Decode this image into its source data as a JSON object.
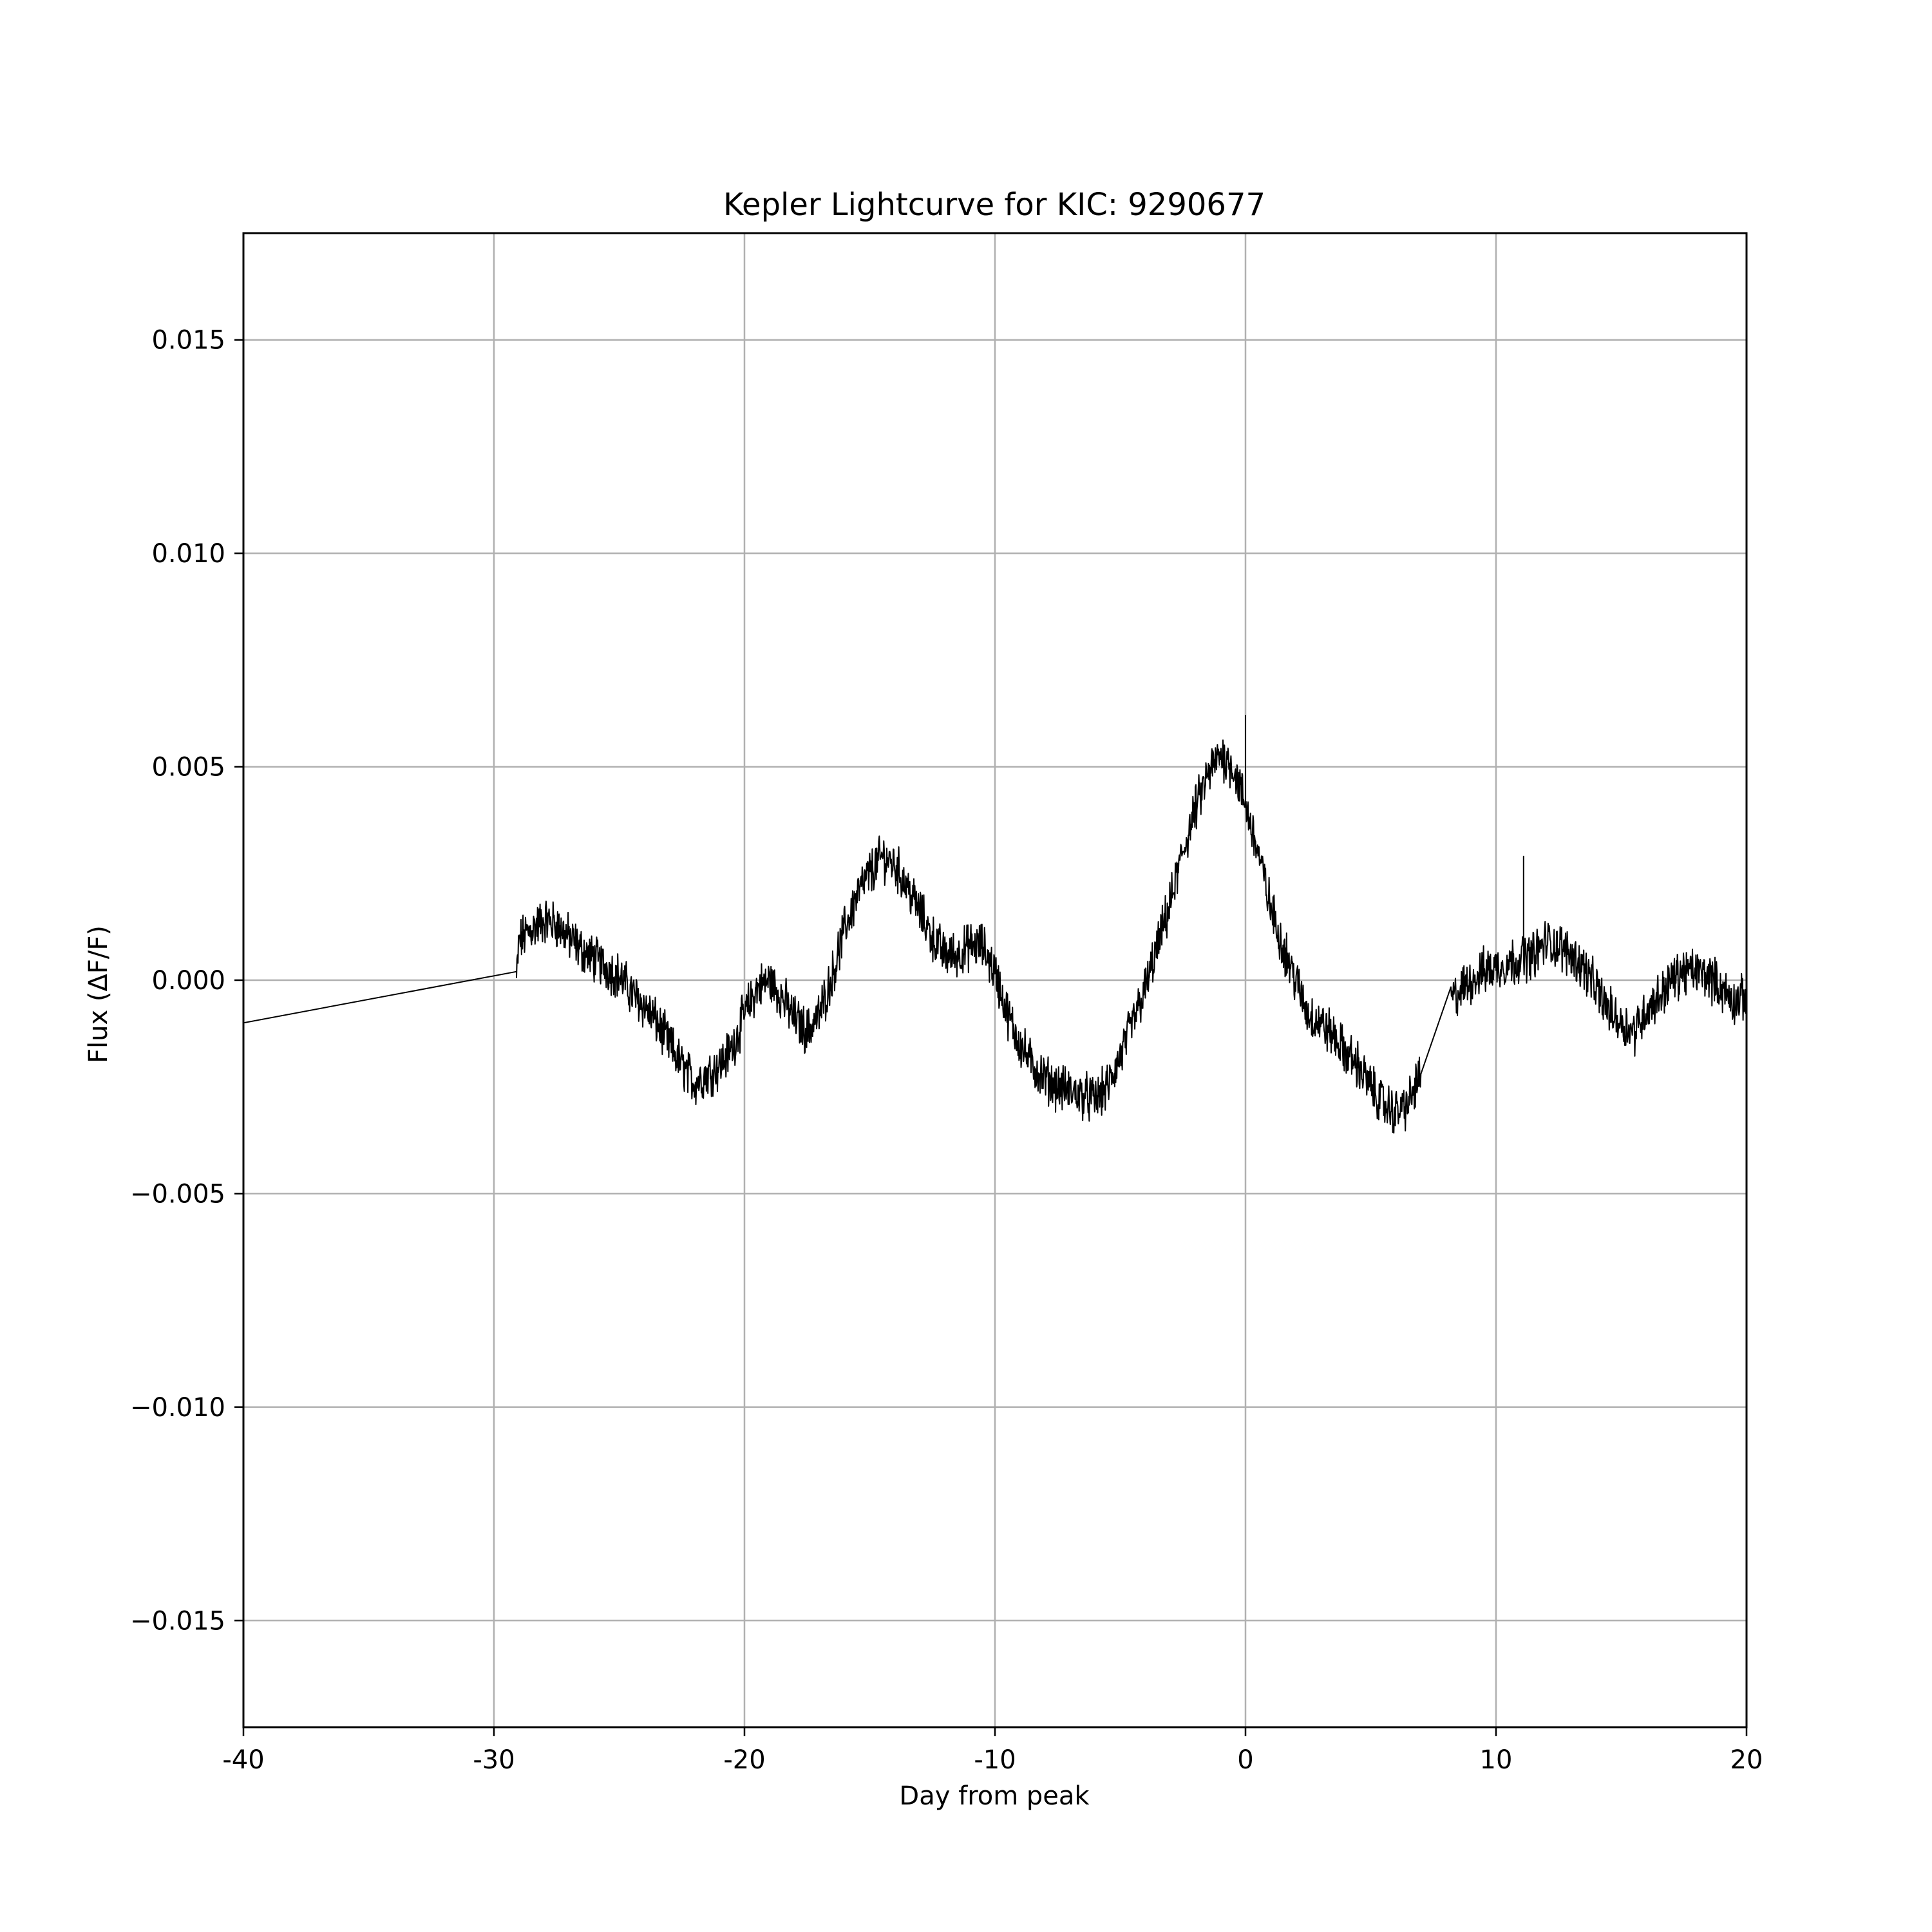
{
  "chart_data": {
    "type": "line",
    "title": "Kepler Lightcurve for KIC: 9290677",
    "xlabel": "Day from peak",
    "ylabel": "Flux (ΔF/F)",
    "xlim": [
      -40,
      20
    ],
    "ylim": [
      -0.0175,
      0.0175
    ],
    "xticks": [
      -40,
      -30,
      -20,
      -10,
      0,
      10,
      20
    ],
    "xtick_labels": [
      "-40",
      "-30",
      "-20",
      "-10",
      "0",
      "10",
      "20"
    ],
    "yticks": [
      -0.015,
      -0.01,
      -0.005,
      0.0,
      0.005,
      0.01,
      0.015
    ],
    "ytick_labels": [
      "−0.015",
      "−0.010",
      "−0.005",
      "0.000",
      "0.005",
      "0.010",
      "0.015"
    ],
    "grid": true,
    "line_color": "#000000",
    "grid_color": "#b0b0b0",
    "series": [
      {
        "x": [
          -40.0,
          -29.1,
          -29.1,
          -29.0,
          -28.5,
          -28.0,
          -27.5,
          -27.0,
          -26.5,
          -26.0,
          -25.5,
          -25.0,
          -24.5,
          -24.0,
          -23.5,
          -23.0,
          -22.5,
          -22.0,
          -21.5,
          -21.0,
          -20.5,
          -20.0,
          -19.5,
          -19.0,
          -18.5,
          -18.0,
          -17.5,
          -17.0,
          -16.5,
          -16.0,
          -15.5,
          -15.0,
          -14.5,
          -14.0,
          -13.5,
          -13.0,
          -12.5,
          -12.0,
          -11.5,
          -11.0,
          -10.5,
          -10.0,
          -9.5,
          -9.0,
          -8.5,
          -8.0,
          -7.5,
          -7.0,
          -6.5,
          -6.0,
          -5.5,
          -5.0,
          -4.5,
          -4.0,
          -3.5,
          -3.0,
          -2.5,
          -2.0,
          -1.5,
          -1.0,
          -0.5,
          0.0,
          0.5,
          1.0,
          1.5,
          2.0,
          2.5,
          3.0,
          3.5,
          4.0,
          4.5,
          5.0,
          5.5,
          6.0,
          6.5,
          7.0,
          8.2,
          8.5,
          9.0,
          9.5,
          10.0,
          10.5,
          11.0,
          11.5,
          12.0,
          12.5,
          13.0,
          13.5,
          14.0,
          14.5,
          15.0,
          15.5,
          16.0,
          16.5,
          17.0,
          17.5,
          18.0,
          18.5,
          19.0,
          19.5,
          20.0
        ],
        "y": [
          -0.001,
          0.0002,
          0.0,
          0.0009,
          0.0012,
          0.0014,
          0.0013,
          0.001,
          0.0007,
          0.0005,
          0.0003,
          0.0001,
          -0.0003,
          -0.0006,
          -0.001,
          -0.0015,
          -0.002,
          -0.0024,
          -0.0022,
          -0.002,
          -0.0016,
          -0.0008,
          -0.0002,
          0.0,
          -0.0004,
          -0.0009,
          -0.0012,
          -0.0008,
          0.0001,
          0.0012,
          0.002,
          0.0025,
          0.0029,
          0.0027,
          0.0022,
          0.0016,
          0.001,
          0.0006,
          0.0006,
          0.0008,
          0.0008,
          0.0002,
          -0.0008,
          -0.0015,
          -0.002,
          -0.0023,
          -0.0025,
          -0.0026,
          -0.0027,
          -0.0028,
          -0.0025,
          -0.0018,
          -0.001,
          -0.0002,
          0.0008,
          0.0018,
          0.003,
          0.004,
          0.0048,
          0.0053,
          0.005,
          0.0041,
          0.003,
          0.0017,
          0.0008,
          0.0,
          -0.0008,
          -0.001,
          -0.0013,
          -0.0017,
          -0.002,
          -0.0025,
          -0.0029,
          -0.0031,
          -0.0029,
          -0.0022,
          -0.0005,
          -0.0003,
          0.0,
          0.0002,
          0.0003,
          0.0004,
          0.0005,
          0.0006,
          0.0009,
          0.0008,
          0.0006,
          0.0003,
          -0.0002,
          -0.0007,
          -0.001,
          -0.0012,
          -0.0007,
          -0.0004,
          0.0,
          0.0002,
          0.0002,
          0.0001,
          -0.0002,
          -0.0005,
          -0.0004
        ]
      }
    ],
    "spikes": [
      {
        "x": 0.0,
        "y": 0.0062
      },
      {
        "x": 11.1,
        "y": 0.0029
      }
    ]
  }
}
